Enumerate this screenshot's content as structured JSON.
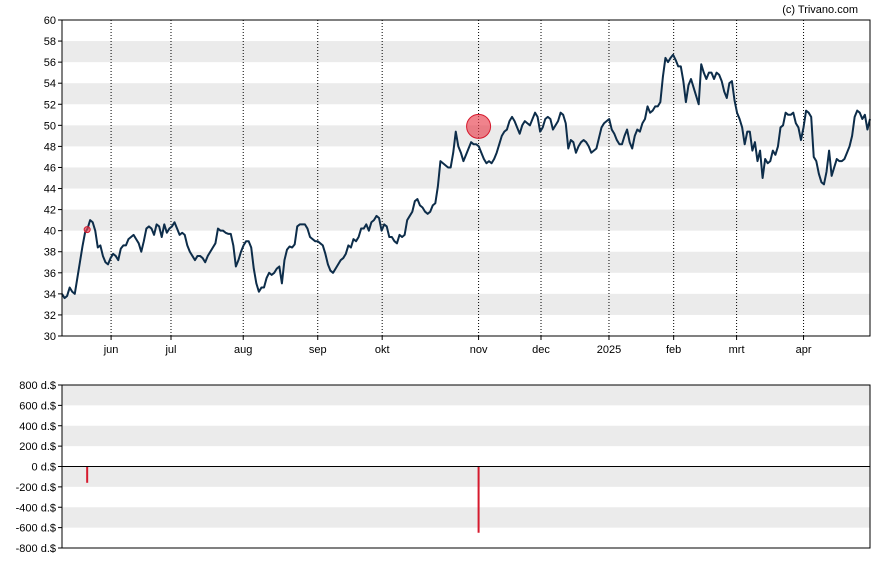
{
  "credit": "(c) Trivano.com",
  "colors": {
    "line": "#0d2d4a",
    "band": "#ebebeb",
    "marker": "#e8404f",
    "bar": "#d61a2e",
    "axis": "#000000"
  },
  "chart_data": [
    {
      "type": "line",
      "title": "",
      "xlabel": "",
      "ylabel": "",
      "ylim": [
        30,
        60
      ],
      "ytick_step": 2,
      "yticks": [
        "30",
        "32",
        "34",
        "36",
        "38",
        "40",
        "42",
        "44",
        "46",
        "48",
        "50",
        "52",
        "54",
        "56",
        "58",
        "60"
      ],
      "month_labels": [
        "jun",
        "jul",
        "aug",
        "sep",
        "okt",
        "nov",
        "dec",
        "2025",
        "feb",
        "mrt",
        "apr"
      ],
      "month_positions": [
        19.5,
        43.3,
        72,
        101.6,
        127.2,
        165.5,
        190.3,
        217.3,
        243,
        268,
        294.6
      ],
      "x_range": [
        0,
        321
      ],
      "series": [
        {
          "values": [
            34.0,
            33.6,
            33.8,
            34.6,
            34.2,
            34.0,
            35.5,
            37.0,
            38.5,
            39.8,
            40.2,
            41.0,
            40.8,
            40.0,
            38.4,
            38.6,
            37.6,
            37.0,
            36.8,
            37.4,
            37.8,
            37.6,
            37.2,
            38.3,
            38.6,
            38.6,
            39.2,
            39.4,
            39.6,
            39.2,
            38.8,
            38.0,
            39.0,
            40.2,
            40.4,
            40.2,
            39.6,
            40.6,
            40.4,
            39.4,
            40.6,
            39.8,
            40.2,
            40.4,
            40.8,
            40.2,
            39.6,
            39.8,
            39.6,
            38.6,
            38.0,
            37.6,
            37.2,
            37.6,
            37.6,
            37.4,
            37.0,
            37.6,
            38.0,
            38.4,
            38.8,
            40.2,
            40.0,
            40.0,
            39.8,
            39.7,
            39.7,
            38.6,
            36.6,
            37.2,
            38.0,
            38.6,
            39.0,
            39.0,
            38.4,
            36.4,
            35.0,
            34.2,
            34.6,
            34.6,
            35.5,
            36.0,
            35.8,
            36.0,
            36.4,
            36.6,
            35.0,
            37.2,
            38.2,
            38.5,
            38.4,
            38.7,
            40.4,
            40.6,
            40.6,
            40.6,
            40.2,
            39.4,
            39.2,
            39.0,
            39.0,
            38.8,
            38.6,
            37.8,
            36.8,
            36.2,
            36.0,
            36.4,
            36.8,
            37.2,
            37.4,
            37.8,
            38.6,
            38.4,
            39.2,
            39.0,
            39.4,
            40.2,
            40.2,
            40.6,
            40.0,
            40.8,
            41.0,
            41.4,
            41.2,
            40.0,
            40.6,
            40.4,
            39.4,
            39.4,
            39.0,
            38.8,
            39.6,
            39.4,
            39.6,
            41.0,
            41.4,
            41.8,
            42.8,
            43.0,
            42.4,
            42.2,
            41.8,
            41.6,
            41.8,
            42.4,
            42.6,
            44.2,
            46.6,
            46.4,
            46.2,
            46.0,
            46.0,
            47.4,
            49.4,
            48.0,
            47.4,
            46.6,
            47.2,
            47.8,
            48.4,
            48.2,
            48.2,
            48.0,
            47.4,
            46.8,
            46.4,
            46.6,
            46.4,
            46.8,
            47.4,
            48.2,
            49.0,
            49.4,
            49.6,
            50.4,
            50.8,
            50.4,
            49.8,
            49.2,
            50.0,
            50.4,
            50.2,
            50.0,
            50.6,
            51.2,
            50.8,
            49.4,
            49.8,
            50.6,
            50.8,
            50.6,
            49.6,
            50.0,
            50.4,
            51.2,
            51.0,
            50.2,
            47.8,
            48.6,
            48.4,
            47.4,
            48.0,
            48.4,
            48.6,
            48.4,
            48.0,
            47.4,
            47.6,
            47.8,
            48.8,
            49.8,
            50.2,
            50.4,
            50.6,
            49.6,
            49.2,
            48.6,
            48.2,
            48.2,
            49.0,
            49.6,
            48.4,
            47.8,
            49.0,
            49.6,
            49.4,
            50.2,
            50.6,
            51.8,
            51.2,
            51.4,
            51.8,
            51.8,
            52.2,
            54.6,
            56.4,
            56.0,
            56.4,
            56.7,
            56.2,
            55.6,
            55.6,
            54.2,
            52.2,
            53.8,
            54.4,
            53.6,
            52.8,
            52.0,
            55.8,
            55.0,
            54.4,
            55.0,
            55.0,
            54.4,
            55.0,
            54.8,
            54.2,
            53.2,
            52.6,
            54.0,
            54.2,
            52.4,
            51.2,
            50.6,
            49.8,
            48.2,
            49.4,
            49.4,
            47.6,
            48.4,
            46.6,
            47.6,
            45.0,
            46.8,
            46.4,
            46.6,
            47.6,
            47.2,
            48.0,
            49.8,
            50.0,
            51.2,
            51.0,
            51.0,
            51.2,
            50.2,
            49.8,
            48.6,
            49.8,
            51.4,
            51.2,
            50.8,
            47.0,
            46.6,
            45.4,
            44.6,
            44.4,
            45.6,
            47.6,
            45.2,
            46.0,
            46.8,
            46.6,
            46.6,
            46.8,
            47.4,
            48.0,
            49.0,
            50.8,
            51.4,
            51.2,
            50.6,
            51.0,
            49.6,
            50.6
          ]
        }
      ],
      "markers": [
        {
          "x": 10,
          "y": 40.1,
          "size": "small"
        },
        {
          "x": 165.5,
          "y": 49.9,
          "size": "large"
        }
      ]
    },
    {
      "type": "bar",
      "title": "",
      "xlabel": "",
      "ylabel": "",
      "ylim": [
        -800,
        800
      ],
      "yticks": [
        "-800 d.$",
        "-600 d.$",
        "-400 d.$",
        "-200 d.$",
        "0 d.$",
        "200 d.$",
        "400 d.$",
        "600 d.$",
        "800 d.$"
      ],
      "bars": [
        {
          "x": 10,
          "value": -160
        },
        {
          "x": 165.5,
          "value": -650
        }
      ]
    }
  ]
}
